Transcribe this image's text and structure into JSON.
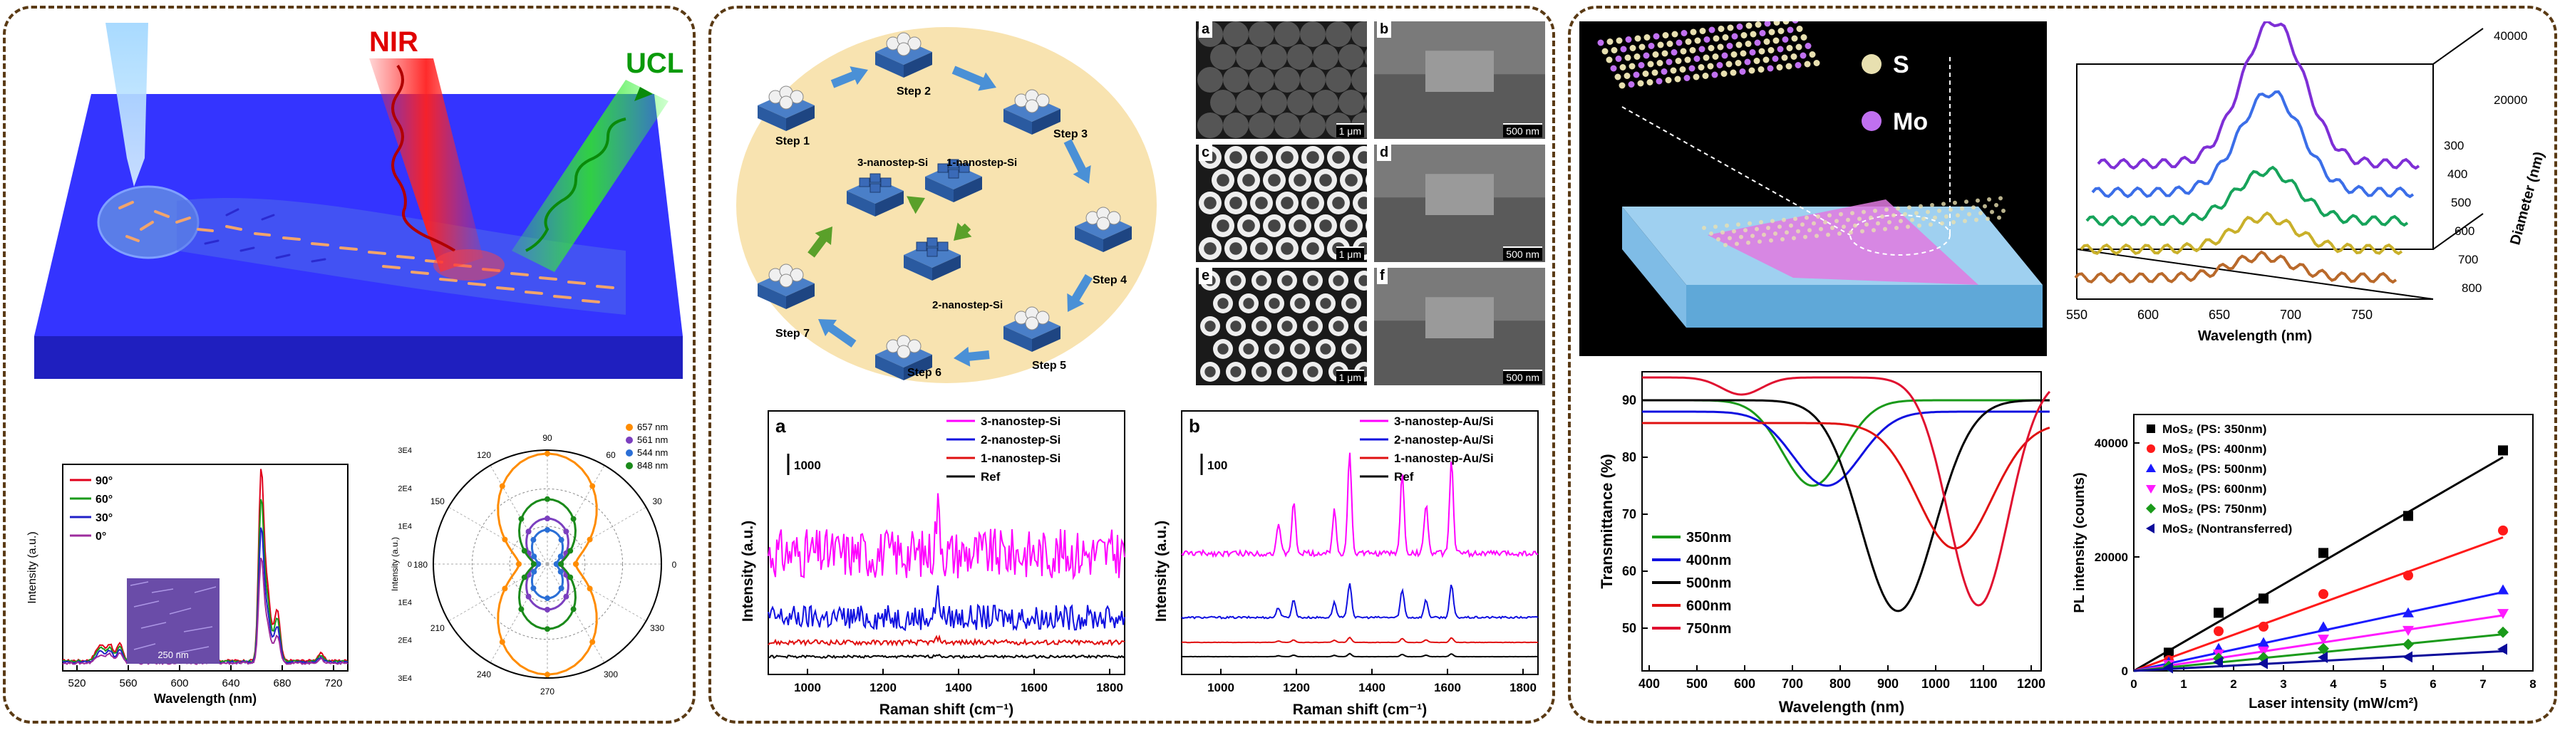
{
  "panel1": {
    "nir_label": "NIR",
    "ucl_label": "UCL",
    "spectrum": {
      "legend": [
        "90°",
        "60°",
        "30°",
        "0°"
      ],
      "colors": [
        "#e0001b",
        "#1a9a1a",
        "#2020c8",
        "#9d2c9d"
      ],
      "ylabel": "Intensity (a.u.)",
      "xlabel": "Wavelength (nm)",
      "xticks": [
        "520",
        "560",
        "600",
        "640",
        "680",
        "720"
      ],
      "scalebar": "250 nm"
    },
    "polar": {
      "legend": [
        "657 nm",
        "561 nm",
        "544 nm",
        "848 nm"
      ],
      "colors": [
        "#ff8c00",
        "#7b3fbf",
        "#2b6fd6",
        "#1a8a1a"
      ],
      "angles": [
        "90",
        "60",
        "30",
        "0",
        "330",
        "300",
        "270",
        "240",
        "210",
        "180",
        "150",
        "120"
      ],
      "ylabel": "Intensity (a.u.)",
      "rticks": [
        "3E4",
        "2E4",
        "1E4",
        "0",
        "1E4",
        "2E4",
        "3E4"
      ]
    }
  },
  "panel2": {
    "steps": [
      "Step 1",
      "Step 2",
      "Step 3",
      "Step 4",
      "Step 5",
      "Step 6",
      "Step 7"
    ],
    "stack_labels": [
      "3-nanostep-Si",
      "1-nanostep-Si",
      "2-nanostep-Si"
    ],
    "sem_letters": [
      "a",
      "b",
      "c",
      "d",
      "e",
      "f"
    ],
    "sem_scalebars": [
      "1 μm",
      "500 nm",
      "1 μm",
      "500 nm",
      "1 μm",
      "500 nm"
    ],
    "raman_a": {
      "letter": "a",
      "scale": "1000",
      "legend": [
        "3-nanostep-Si",
        "2-nanostep-Si",
        "1-nanostep-Si",
        "Ref"
      ],
      "colors": [
        "#ff00ff",
        "#1010e0",
        "#e01010",
        "#000000"
      ],
      "ylabel": "Intensity (a.u.)",
      "xlabel": "Raman shift (cm⁻¹)",
      "xticks": [
        "1000",
        "1200",
        "1400",
        "1600",
        "1800"
      ]
    },
    "raman_b": {
      "letter": "b",
      "scale": "100",
      "legend": [
        "3-nanostep-Au/Si",
        "2-nanostep-Au/Si",
        "1-nanostep-Au/Si",
        "Ref"
      ],
      "colors": [
        "#ff00ff",
        "#1010e0",
        "#e01010",
        "#000000"
      ],
      "ylabel": "Intensity (a.u.)",
      "xlabel": "Raman shift (cm⁻¹)",
      "xticks": [
        "1000",
        "1200",
        "1400",
        "1600",
        "1800"
      ]
    }
  },
  "panel3": {
    "atom_legend": [
      "S",
      "Mo"
    ],
    "pl3d": {
      "xlabel": "Wavelength (nm)",
      "ylabel": "Diameter (nm)",
      "xticks": [
        "550",
        "600",
        "650",
        "700",
        "750"
      ],
      "zticks": [
        "40000",
        "20000"
      ],
      "yticks": [
        "300",
        "400",
        "500",
        "600",
        "700",
        "800"
      ],
      "colors": [
        "#7e2fd6",
        "#3b6ee8",
        "#16a35a",
        "#c9b02a",
        "#b9692a"
      ]
    },
    "transmittance": {
      "ylabel": "Transmittance (%)",
      "xlabel": "Wavelength (nm)",
      "xticks": [
        "400",
        "500",
        "600",
        "700",
        "800",
        "900",
        "1000",
        "1100",
        "1200"
      ],
      "yticks": [
        "90",
        "80",
        "70",
        "60",
        "50"
      ],
      "legend": [
        "350nm",
        "400nm",
        "500nm",
        "600nm",
        "750nm"
      ],
      "colors": [
        "#1a9a1a",
        "#1010e0",
        "#000000",
        "#e01010",
        "#e01030"
      ]
    },
    "pl_vs_laser": {
      "ylabel": "PL intensity (counts)",
      "xlabel": "Laser intensity (mW/cm²)",
      "xticks": [
        "0",
        "1",
        "2",
        "3",
        "4",
        "5",
        "6",
        "7",
        "8"
      ],
      "yticks": [
        "40000",
        "20000",
        "0"
      ],
      "legend": [
        "MoS₂ (PS: 350nm)",
        "MoS₂ (PS: 400nm)",
        "MoS₂ (PS: 500nm)",
        "MoS₂ (PS: 600nm)",
        "MoS₂ (PS: 750nm)",
        "MoS₂ (Nontransferred)"
      ],
      "colors": [
        "#000000",
        "#ff1a1a",
        "#1a1aff",
        "#ff1aff",
        "#1a9a1a",
        "#0a0a9a"
      ],
      "markers": [
        "square",
        "circle",
        "triangle-up",
        "triangle-down",
        "diamond",
        "triangle-left"
      ]
    }
  }
}
